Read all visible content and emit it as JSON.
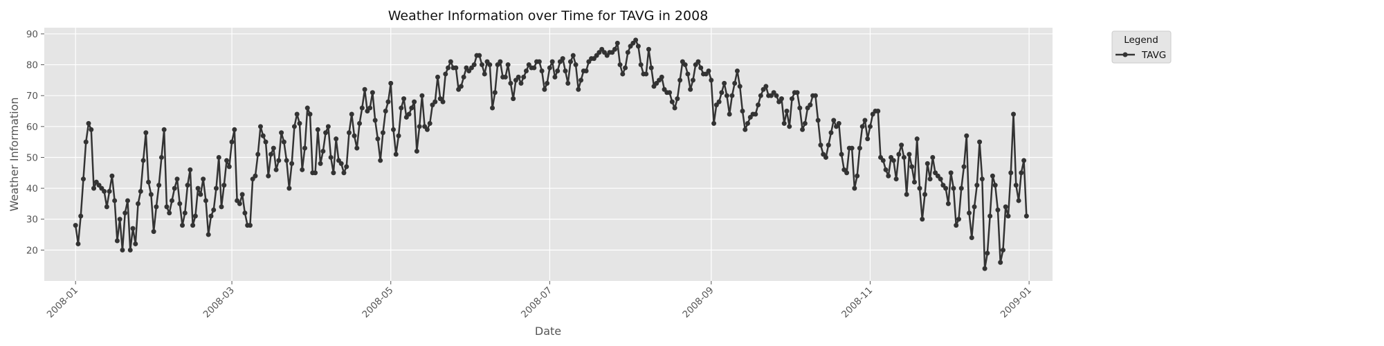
{
  "chart_data": {
    "type": "line",
    "title": "Weather Information over Time for TAVG in 2008",
    "xlabel": "Date",
    "ylabel": "Weather Information",
    "xlim": [
      "2007-12-20",
      "2009-01-10"
    ],
    "ylim": [
      10,
      92
    ],
    "xticks": [
      "2008-01",
      "2008-03",
      "2008-05",
      "2008-07",
      "2008-09",
      "2008-11",
      "2009-01"
    ],
    "yticks": [
      20,
      30,
      40,
      50,
      60,
      70,
      80,
      90
    ],
    "grid": true,
    "legend": {
      "title": "Legend",
      "placement": "outside-top-right"
    },
    "colors": {
      "line": "#333333",
      "plot_bg": "#e5e5e5",
      "grid": "#ffffff",
      "legend_bg": "#e5e5e5"
    },
    "series": [
      {
        "name": "TAVG",
        "start_date": "2008-01-01",
        "step_days": 1,
        "values": [
          28,
          22,
          31,
          43,
          55,
          61,
          59,
          40,
          42,
          41,
          40,
          39,
          34,
          39,
          44,
          36,
          23,
          30,
          20,
          32,
          36,
          20,
          27,
          22,
          35,
          39,
          49,
          58,
          42,
          38,
          26,
          34,
          41,
          50,
          59,
          34,
          32,
          36,
          40,
          43,
          35,
          28,
          32,
          41,
          46,
          28,
          31,
          40,
          38,
          43,
          36,
          25,
          31,
          33,
          40,
          50,
          34,
          41,
          49,
          47,
          55,
          59,
          36,
          35,
          38,
          32,
          28,
          28,
          43,
          44,
          51,
          60,
          57,
          55,
          44,
          51,
          53,
          46,
          49,
          58,
          55,
          49,
          40,
          48,
          60,
          64,
          61,
          46,
          53,
          66,
          64,
          45,
          45,
          59,
          48,
          52,
          58,
          60,
          50,
          45,
          56,
          49,
          48,
          45,
          47,
          58,
          64,
          57,
          53,
          61,
          66,
          72,
          65,
          66,
          71,
          62,
          56,
          49,
          58,
          65,
          68,
          74,
          59,
          51,
          57,
          66,
          69,
          63,
          64,
          66,
          68,
          52,
          60,
          70,
          60,
          59,
          61,
          67,
          68,
          76,
          69,
          68,
          77,
          79,
          81,
          79,
          79,
          72,
          73,
          76,
          79,
          78,
          79,
          80,
          83,
          83,
          80,
          77,
          81,
          80,
          66,
          71,
          80,
          81,
          76,
          76,
          80,
          74,
          69,
          75,
          76,
          74,
          76,
          78,
          80,
          79,
          79,
          81,
          81,
          78,
          72,
          74,
          79,
          81,
          76,
          78,
          81,
          82,
          78,
          74,
          81,
          83,
          80,
          72,
          75,
          78,
          78,
          81,
          82,
          82,
          83,
          84,
          85,
          84,
          83,
          84,
          84,
          85,
          87,
          80,
          77,
          79,
          84,
          86,
          87,
          88,
          86,
          80,
          77,
          77,
          85,
          79,
          73,
          74,
          75,
          76,
          72,
          71,
          71,
          68,
          66,
          69,
          75,
          81,
          80,
          77,
          72,
          75,
          80,
          81,
          79,
          77,
          77,
          78,
          75,
          61,
          67,
          68,
          71,
          74,
          70,
          64,
          70,
          74,
          78,
          73,
          65,
          59,
          61,
          63,
          64,
          64,
          67,
          70,
          72,
          73,
          70,
          70,
          71,
          70,
          68,
          69,
          61,
          65,
          60,
          69,
          71,
          71,
          66,
          59,
          61,
          66,
          67,
          70,
          70,
          62,
          54,
          51,
          50,
          54,
          58,
          62,
          60,
          61,
          51,
          46,
          45,
          53,
          53,
          40,
          44,
          53,
          60,
          62,
          56,
          60,
          64,
          65,
          65,
          50,
          49,
          46,
          44,
          50,
          49,
          43,
          51,
          54,
          50,
          38,
          51,
          47,
          42,
          56,
          40,
          30,
          38,
          48,
          43,
          50,
          45,
          44,
          43,
          41,
          40,
          35,
          45,
          40,
          28,
          30,
          40,
          47,
          57,
          32,
          24,
          34,
          41,
          55,
          43,
          14,
          19,
          31,
          44,
          41,
          33,
          16,
          20,
          34,
          31,
          45,
          64,
          41,
          36,
          45,
          49,
          31
        ]
      }
    ]
  }
}
